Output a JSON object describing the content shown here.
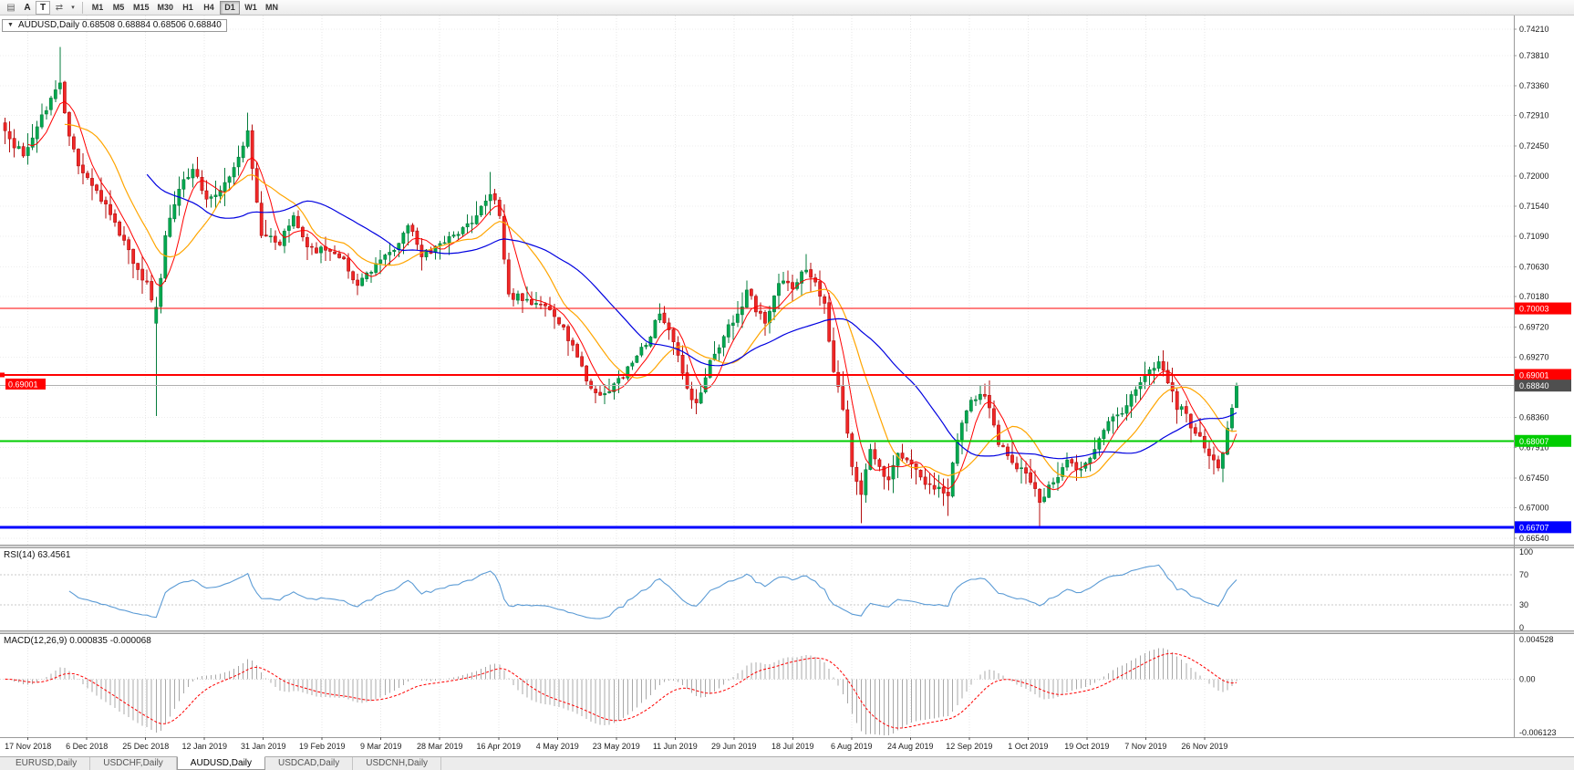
{
  "toolbar": {
    "tool_a": "A",
    "tool_t": "T",
    "timeframes": [
      "M1",
      "M5",
      "M15",
      "M30",
      "H1",
      "H4",
      "D1",
      "W1",
      "MN"
    ],
    "active_timeframe": "D1"
  },
  "chart": {
    "ohlc_header": "AUDUSD,Daily 0.68508 0.68884 0.68506 0.68840",
    "rsi_label": "RSI(14) 63.4561",
    "macd_label": "MACD(12,26,9) 0.000835 -0.000068"
  },
  "tabs": {
    "items": [
      "EURUSD,Daily",
      "USDCHF,Daily",
      "AUDUSD,Daily",
      "USDCAD,Daily",
      "USDCNH,Daily"
    ],
    "active_index": 2
  },
  "chart_data": {
    "type": "candlestick",
    "symbol": "AUDUSD",
    "timeframe": "Daily",
    "last_bar": {
      "open": 0.68508,
      "high": 0.68884,
      "low": 0.68506,
      "close": 0.6884
    },
    "price_axis": {
      "max": 0.7421,
      "min": 0.6654,
      "labels": [
        "0.74210",
        "0.73810",
        "0.73360",
        "0.72910",
        "0.72450",
        "0.72000",
        "0.71540",
        "0.71090",
        "0.70630",
        "0.70180",
        "0.69720",
        "0.69270",
        "0.68810",
        "0.68360",
        "0.67910",
        "0.67450",
        "0.67000",
        "0.66540"
      ]
    },
    "time_axis": {
      "labels": [
        "17 Nov 2018",
        "6 Dec 2018",
        "25 Dec 2018",
        "12 Jan 2019",
        "31 Jan 2019",
        "19 Feb 2019",
        "9 Mar 2019",
        "28 Mar 2019",
        "16 Apr 2019",
        "4 May 2019",
        "23 May 2019",
        "11 Jun 2019",
        "29 Jun 2019",
        "18 Jul 2019",
        "6 Aug 2019",
        "24 Aug 2019",
        "12 Sep 2019",
        "1 Oct 2019",
        "19 Oct 2019",
        "7 Nov 2019",
        "26 Nov 2019"
      ]
    },
    "levels": [
      {
        "price": 0.70003,
        "label": "0.70003",
        "color": "#ff0000",
        "width": 1,
        "left_label": false
      },
      {
        "price": 0.69001,
        "label": "0.69001",
        "color": "#ff0000",
        "width": 2,
        "left_label": true
      },
      {
        "price": 0.68007,
        "label": "0.68007",
        "color": "#00cc00",
        "width": 2,
        "left_label": false
      },
      {
        "price": 0.66707,
        "label": "0.66707",
        "color": "#0000ff",
        "width": 3,
        "left_label": false
      }
    ],
    "current_price": {
      "value": 0.6884,
      "label": "0.68840",
      "badge_color": "#4f4f4f",
      "line_color": "#b0b0b0"
    },
    "rsi": {
      "value": 63.4561,
      "axis_labels": [
        "100",
        "70",
        "30",
        "0"
      ],
      "axis_values": [
        100,
        70,
        30,
        0
      ],
      "dashed_levels": [
        70,
        30
      ]
    },
    "macd": {
      "value": 0.000835,
      "signal": -6.8e-05,
      "max": 0.004528,
      "min": -0.006123,
      "axis_labels": [
        "0.004528",
        "0.00",
        "-0.006123"
      ]
    },
    "bar_count": 270,
    "noise": 0.0008,
    "close_waypoints": [
      [
        0,
        0.7268
      ],
      [
        4,
        0.723
      ],
      [
        8,
        0.7292
      ],
      [
        12,
        0.734
      ],
      [
        14,
        0.726
      ],
      [
        16,
        0.7215
      ],
      [
        20,
        0.7178
      ],
      [
        24,
        0.713
      ],
      [
        28,
        0.7068
      ],
      [
        31,
        0.704
      ],
      [
        33,
        0.699
      ],
      [
        35,
        0.711
      ],
      [
        38,
        0.718
      ],
      [
        41,
        0.721
      ],
      [
        44,
        0.7165
      ],
      [
        48,
        0.719
      ],
      [
        52,
        0.7245
      ],
      [
        53,
        0.7268
      ],
      [
        56,
        0.711
      ],
      [
        60,
        0.7096
      ],
      [
        63,
        0.714
      ],
      [
        66,
        0.7093
      ],
      [
        70,
        0.7088
      ],
      [
        74,
        0.7075
      ],
      [
        77,
        0.7035
      ],
      [
        81,
        0.7068
      ],
      [
        85,
        0.7088
      ],
      [
        88,
        0.7125
      ],
      [
        91,
        0.7078
      ],
      [
        95,
        0.7098
      ],
      [
        99,
        0.7112
      ],
      [
        103,
        0.714
      ],
      [
        106,
        0.7172
      ],
      [
        108,
        0.714
      ],
      [
        110,
        0.7022
      ],
      [
        113,
        0.7012
      ],
      [
        116,
        0.7008
      ],
      [
        120,
        0.6988
      ],
      [
        124,
        0.6945
      ],
      [
        128,
        0.688
      ],
      [
        131,
        0.6872
      ],
      [
        134,
        0.6895
      ],
      [
        137,
        0.6918
      ],
      [
        140,
        0.6945
      ],
      [
        143,
        0.6992
      ],
      [
        146,
        0.695
      ],
      [
        149,
        0.688
      ],
      [
        151,
        0.6858
      ],
      [
        154,
        0.6922
      ],
      [
        157,
        0.6958
      ],
      [
        160,
        0.6992
      ],
      [
        162,
        0.7028
      ],
      [
        164,
        0.6995
      ],
      [
        166,
        0.6978
      ],
      [
        169,
        0.7038
      ],
      [
        172,
        0.703
      ],
      [
        175,
        0.7058
      ],
      [
        177,
        0.704
      ],
      [
        179,
        0.7008
      ],
      [
        181,
        0.6905
      ],
      [
        183,
        0.6848
      ],
      [
        185,
        0.6762
      ],
      [
        187,
        0.672
      ],
      [
        189,
        0.6788
      ],
      [
        191,
        0.6762
      ],
      [
        193,
        0.6742
      ],
      [
        195,
        0.6782
      ],
      [
        197,
        0.6772
      ],
      [
        199,
        0.6758
      ],
      [
        201,
        0.6735
      ],
      [
        203,
        0.6728
      ],
      [
        205,
        0.6722
      ],
      [
        206,
        0.6718
      ],
      [
        208,
        0.6802
      ],
      [
        211,
        0.6862
      ],
      [
        214,
        0.6868
      ],
      [
        217,
        0.6795
      ],
      [
        220,
        0.6768
      ],
      [
        223,
        0.6752
      ],
      [
        226,
        0.6708
      ],
      [
        229,
        0.6738
      ],
      [
        232,
        0.6772
      ],
      [
        235,
        0.6758
      ],
      [
        238,
        0.6788
      ],
      [
        241,
        0.683
      ],
      [
        244,
        0.6842
      ],
      [
        247,
        0.6878
      ],
      [
        250,
        0.6908
      ],
      [
        252,
        0.692
      ],
      [
        254,
        0.6888
      ],
      [
        256,
        0.6848
      ],
      [
        258,
        0.6842
      ],
      [
        260,
        0.6812
      ],
      [
        262,
        0.679
      ],
      [
        264,
        0.6772
      ],
      [
        265,
        0.676
      ],
      [
        266,
        0.6782
      ],
      [
        267,
        0.682
      ],
      [
        268,
        0.685
      ],
      [
        269,
        0.6884
      ]
    ],
    "overrides": [
      {
        "i": 12,
        "h": 0.7394
      },
      {
        "i": 33,
        "o": 0.6978,
        "c": 0.7002,
        "l": 0.6838
      },
      {
        "i": 53,
        "h": 0.7295
      },
      {
        "i": 106,
        "h": 0.7206
      },
      {
        "i": 175,
        "h": 0.7082
      },
      {
        "i": 187,
        "l": 0.6677
      },
      {
        "i": 206,
        "l": 0.6688
      },
      {
        "i": 226,
        "l": 0.667
      },
      {
        "i": 252,
        "h": 0.6929
      },
      {
        "i": 269,
        "o": 0.68508,
        "h": 0.68884,
        "l": 0.68506,
        "c": 0.6884
      }
    ],
    "ma_periods": {
      "red": 6,
      "orange": 14,
      "blue": 32
    },
    "colors": {
      "up": "#00a84f",
      "up_edge": "#067c3c",
      "down": "#f02727",
      "down_edge": "#b40f0f",
      "ma_red": "#ff0000",
      "ma_orange": "#ffa500",
      "ma_blue": "#0000e0",
      "rsi_line": "#5b9bd5",
      "macd_hist": "#a8a8a8",
      "macd_signal": "#ff0000",
      "grid": "#e7e7e7",
      "axis_text": "#1a1a1a",
      "pane_border": "#9a9a9a"
    }
  }
}
